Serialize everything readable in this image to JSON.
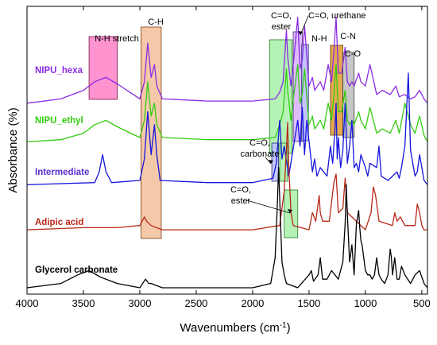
{
  "chart_data": {
    "type": "line",
    "xlabel": "Wavenumbers (cm",
    "xlabel_sup": "-1",
    "xlabel_tail": ")",
    "ylabel": "Absorbance (%)",
    "xlim": [
      4000,
      450
    ],
    "x_reversed": true,
    "x_ticks": [
      4000,
      3500,
      3000,
      2500,
      2000,
      1500,
      1000,
      500
    ],
    "y_ticks_shown": false,
    "legend": "none (series labelled inline)",
    "series": [
      {
        "name": "NIPU_hexa",
        "color": "#8a2be2",
        "label_color": "#8a2be2",
        "offset": 86,
        "x": [
          4000,
          3700,
          3500,
          3400,
          3300,
          3200,
          3000,
          2960,
          2930,
          2900,
          2870,
          2850,
          2800,
          2400,
          2000,
          1800,
          1760,
          1730,
          1700,
          1690,
          1660,
          1640,
          1600,
          1580,
          1560,
          1540,
          1500,
          1470,
          1450,
          1400,
          1370,
          1330,
          1300,
          1280,
          1260,
          1240,
          1210,
          1180,
          1160,
          1140,
          1120,
          1100,
          1060,
          1040,
          1000,
          960,
          900,
          850,
          780,
          730,
          700,
          650,
          600,
          560,
          520,
          480,
          450
        ],
        "y": [
          0,
          2,
          6,
          10,
          12,
          9,
          2,
          10,
          28,
          12,
          18,
          8,
          2,
          1,
          1,
          2,
          5,
          10,
          34,
          22,
          8,
          18,
          40,
          16,
          20,
          36,
          8,
          12,
          6,
          10,
          6,
          18,
          10,
          24,
          40,
          14,
          14,
          26,
          10,
          8,
          10,
          8,
          14,
          10,
          8,
          18,
          4,
          6,
          4,
          8,
          3,
          4,
          2,
          3,
          6,
          2,
          0
        ]
      },
      {
        "name": "NIPU_ethyl",
        "color": "#33cc11",
        "label_color": "#33cc11",
        "offset": 68,
        "x": [
          4000,
          3700,
          3500,
          3400,
          3300,
          3200,
          3000,
          2960,
          2930,
          2900,
          2870,
          2850,
          2800,
          2400,
          2000,
          1800,
          1760,
          1730,
          1700,
          1690,
          1660,
          1640,
          1600,
          1580,
          1560,
          1540,
          1500,
          1470,
          1450,
          1400,
          1370,
          1330,
          1300,
          1280,
          1260,
          1240,
          1210,
          1180,
          1160,
          1140,
          1120,
          1100,
          1060,
          1040,
          1000,
          960,
          900,
          850,
          780,
          730,
          700,
          650,
          600,
          560,
          520,
          480,
          450
        ],
        "y": [
          0,
          1,
          4,
          8,
          10,
          7,
          2,
          10,
          28,
          12,
          18,
          8,
          2,
          1,
          1,
          2,
          8,
          14,
          34,
          24,
          10,
          20,
          36,
          18,
          22,
          34,
          8,
          12,
          6,
          10,
          6,
          18,
          10,
          22,
          36,
          14,
          14,
          24,
          10,
          8,
          10,
          8,
          14,
          10,
          6,
          16,
          4,
          6,
          4,
          10,
          4,
          18,
          8,
          4,
          12,
          3,
          0
        ]
      },
      {
        "name": "Intermediate",
        "color": "#1515dd",
        "label_color": "#5a2dd0",
        "offset": 48,
        "x": [
          4000,
          3400,
          3360,
          3330,
          3300,
          3250,
          3000,
          2960,
          2930,
          2900,
          2870,
          2850,
          2820,
          2400,
          2000,
          1820,
          1790,
          1760,
          1740,
          1720,
          1680,
          1600,
          1580,
          1560,
          1540,
          1520,
          1470,
          1450,
          1430,
          1400,
          1340,
          1310,
          1290,
          1270,
          1260,
          1250,
          1240,
          1220,
          1200,
          1180,
          1160,
          1140,
          1120,
          1100,
          1080,
          1060,
          1040,
          1000,
          980,
          960,
          900,
          880,
          860,
          800,
          760,
          720,
          700,
          680,
          650,
          620,
          600,
          560,
          540,
          520,
          480,
          450
        ],
        "y": [
          0,
          1,
          6,
          14,
          6,
          1,
          2,
          12,
          34,
          14,
          28,
          14,
          2,
          1,
          1,
          3,
          10,
          30,
          12,
          18,
          4,
          30,
          18,
          36,
          14,
          30,
          6,
          12,
          4,
          8,
          4,
          18,
          10,
          26,
          38,
          12,
          22,
          8,
          16,
          38,
          10,
          18,
          30,
          8,
          10,
          6,
          14,
          8,
          4,
          10,
          8,
          18,
          4,
          2,
          4,
          6,
          3,
          8,
          18,
          52,
          16,
          4,
          6,
          14,
          2,
          0
        ]
      },
      {
        "name": "Adipic acid",
        "color": "#b82818",
        "label_color": "#b82818",
        "offset": 27,
        "x": [
          4000,
          3500,
          3200,
          3000,
          2960,
          2940,
          2900,
          2800,
          2400,
          2000,
          1760,
          1720,
          1700,
          1690,
          1680,
          1660,
          1640,
          1500,
          1470,
          1440,
          1420,
          1410,
          1400,
          1380,
          1320,
          1280,
          1260,
          1240,
          1200,
          1180,
          1160,
          1000,
          950,
          930,
          910,
          880,
          760,
          740,
          720,
          690,
          650,
          560,
          540,
          520,
          500,
          480,
          450
        ],
        "y": [
          0,
          1,
          1,
          2,
          6,
          4,
          2,
          0,
          0,
          0,
          2,
          18,
          38,
          50,
          30,
          8,
          2,
          0,
          8,
          4,
          12,
          16,
          8,
          4,
          4,
          22,
          26,
          8,
          10,
          24,
          8,
          0,
          8,
          20,
          16,
          4,
          2,
          8,
          4,
          6,
          2,
          2,
          12,
          8,
          2,
          0,
          0
        ]
      },
      {
        "name": "Glycerol carbonate",
        "color": "#000000",
        "label_color": "#000000",
        "offset": 0,
        "x": [
          4000,
          3700,
          3550,
          3450,
          3350,
          3200,
          3000,
          2950,
          2920,
          2900,
          2800,
          2400,
          2000,
          1840,
          1800,
          1780,
          1770,
          1760,
          1740,
          1720,
          1700,
          1600,
          1500,
          1480,
          1460,
          1420,
          1400,
          1380,
          1340,
          1300,
          1240,
          1200,
          1180,
          1170,
          1160,
          1140,
          1120,
          1100,
          1080,
          1060,
          1050,
          1040,
          1030,
          1000,
          980,
          960,
          940,
          920,
          900,
          880,
          860,
          830,
          800,
          780,
          770,
          760,
          740,
          720,
          700,
          680,
          650,
          600,
          560,
          520,
          480,
          450
        ],
        "y": [
          0,
          2,
          6,
          8,
          5,
          2,
          0,
          4,
          2,
          2,
          0,
          0,
          0,
          2,
          14,
          40,
          56,
          42,
          12,
          6,
          2,
          0,
          6,
          8,
          3,
          6,
          14,
          4,
          4,
          8,
          4,
          12,
          30,
          48,
          34,
          12,
          20,
          6,
          30,
          36,
          28,
          22,
          20,
          8,
          6,
          6,
          4,
          6,
          14,
          6,
          4,
          2,
          6,
          18,
          14,
          6,
          14,
          4,
          4,
          10,
          6,
          2,
          6,
          8,
          2,
          0
        ]
      }
    ],
    "bands": [
      {
        "label": "N-H stretch",
        "x0": 3450,
        "x1": 3200,
        "ya": 2.3,
        "yb": 0.48,
        "fill": "#ff80c8",
        "stroke": "#7a1840"
      },
      {
        "label": "C-H",
        "x0": 2990,
        "x1": 2810,
        "ya": 2.55,
        "yb": 0.58,
        "fill": "#f2c09a",
        "stroke": "#7a3c14"
      },
      {
        "label": "C=O, ester",
        "x0": 1850,
        "x1": 1650,
        "ya": 2.1,
        "yb": 0.96,
        "fill": "#a8f0a8",
        "stroke": "#247a24"
      },
      {
        "label": "C=O, urethane",
        "x0": 1640,
        "x1": 1560,
        "ya": 1.7,
        "yb": 0.97,
        "fill": "#d8b0ff",
        "stroke": "#4a2a7a"
      },
      {
        "label": "N-H",
        "x0": 1565,
        "x1": 1505,
        "ya": 1.45,
        "yb": 0.97,
        "fill": "#b8b8ff",
        "stroke": "#2a2a7a"
      },
      {
        "label": "C-N",
        "x0": 1310,
        "x1": 1200,
        "ya": 1.45,
        "yb": 1.0,
        "fill": "#e09a30",
        "stroke": "#6a3a0a"
      },
      {
        "label": "C-O",
        "x0": 1200,
        "x1": 1100,
        "ya": 1.3,
        "yb": 0.98,
        "fill": "#bdbdbd",
        "stroke": "#3a3a3a"
      },
      {
        "label": "C=O, carbonate",
        "x0": 1830,
        "x1": 1770,
        "ya": 1.2,
        "yb": 0.91,
        "fill": "#b8c0ff",
        "stroke": "#2a2a7a"
      },
      {
        "label": "C=O, carbonate",
        "x0": 1760,
        "x1": 1690,
        "ya": 1.2,
        "yb": 0.91,
        "fill": "#a8f0a8",
        "stroke": "#247a24"
      },
      {
        "label": "C=O, ester",
        "x0": 1720,
        "x1": 1600,
        "ya": 0.58,
        "yb": 0.6,
        "fill": "#a8f0a8",
        "stroke": "#247a24"
      }
    ],
    "annotations": [
      {
        "line1": "N-H stretch",
        "line2": ""
      },
      {
        "line1": "C-H",
        "line2": ""
      },
      {
        "line1": "C=O,",
        "line2": "ester"
      },
      {
        "line1": "C=O, urethane",
        "line2": ""
      },
      {
        "line1": "N-H",
        "line2": ""
      },
      {
        "line1": "C-N",
        "line2": ""
      },
      {
        "line1": "C-O",
        "line2": ""
      },
      {
        "line1": "C=O,",
        "line2": "carbonate"
      },
      {
        "line1": "C=O,",
        "line2": "ester"
      }
    ]
  }
}
